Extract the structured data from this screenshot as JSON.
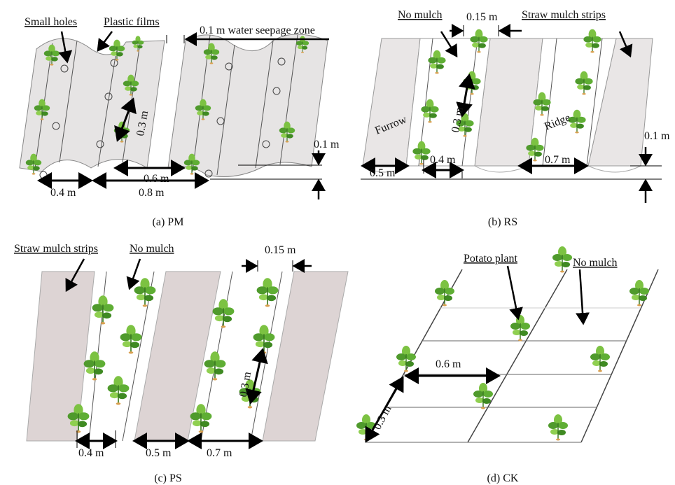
{
  "panels": [
    {
      "caption": "(a) PM",
      "labels": [
        "Small holes",
        "Plastic films",
        "0.1 m water seepage zone",
        "0.3 m",
        "0.6 m",
        "0.1 m",
        "0.4 m",
        "0.8 m"
      ]
    },
    {
      "caption": "(b) RS",
      "labels": [
        "No mulch",
        "0.15 m",
        "Straw mulch strips",
        "Furrow",
        "0.3 m",
        "Ridge",
        "0.1 m",
        "0.5 m",
        "0.4 m",
        "0.7 m"
      ]
    },
    {
      "caption": "(c) PS",
      "labels": [
        "Straw mulch strips",
        "No mulch",
        "0.15 m",
        "0.3 m",
        "0.4 m",
        "0.5 m",
        "0.7 m"
      ]
    },
    {
      "caption": "(d) CK",
      "labels": [
        "Potato plant",
        "No mulch",
        "0.6 m",
        "0.3 m"
      ]
    }
  ]
}
